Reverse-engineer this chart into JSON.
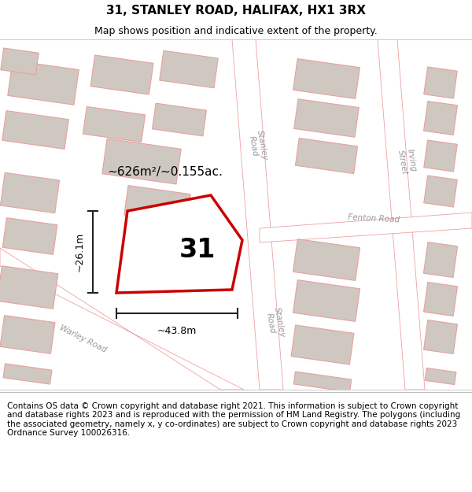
{
  "title": "31, STANLEY ROAD, HALIFAX, HX1 3RX",
  "subtitle": "Map shows position and indicative extent of the property.",
  "footer": "Contains OS data © Crown copyright and database right 2021. This information is subject to Crown copyright and database rights 2023 and is reproduced with the permission of HM Land Registry. The polygons (including the associated geometry, namely x, y co-ordinates) are subject to Crown copyright and database rights 2023 Ordnance Survey 100026316.",
  "map_bg_color": "#ede9e4",
  "building_fill": "#cfc8c0",
  "building_edge": "#e8a0a0",
  "road_fill": "#ffffff",
  "road_edge": "#f0a0a0",
  "plot_outline_color": "#cc0000",
  "plot_fill_color": "#ffffff",
  "dim_color": "#222222",
  "label_31": "31",
  "area_label": "~626m²/~0.155ac.",
  "dim_width": "~43.8m",
  "dim_height": "~26.1m",
  "title_fontsize": 11,
  "subtitle_fontsize": 9,
  "footer_fontsize": 7.5
}
